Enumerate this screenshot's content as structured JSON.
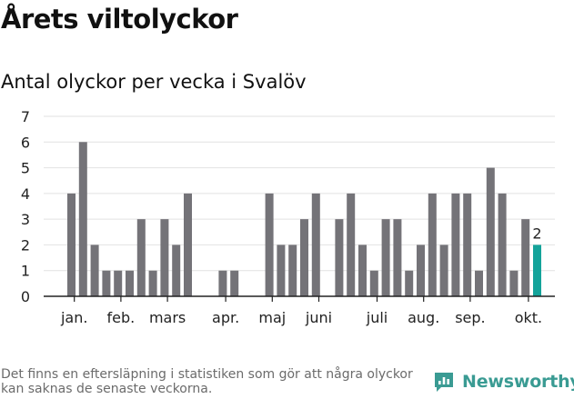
{
  "header": {
    "title": "Årets viltolyckor",
    "subtitle": "Antal olyckor per vecka i Svalöv"
  },
  "footer": {
    "note": "Det finns en eftersläpning i statistiken som gör att några olyckor kan saknas de senaste veckorna.",
    "brand": "Newsworthy"
  },
  "colors": {
    "bar": "#747378",
    "highlight": "#14a39a",
    "brand": "#3a9b93",
    "grid": "#e2e2e2",
    "axis": "#222222"
  },
  "chart_data": {
    "type": "bar",
    "xlabel": "",
    "ylabel": "",
    "ylim": [
      0,
      7
    ],
    "yticks": [
      0,
      1,
      2,
      3,
      4,
      5,
      6,
      7
    ],
    "grid": true,
    "x": [
      1,
      2,
      3,
      4,
      5,
      6,
      7,
      8,
      9,
      10,
      11,
      12,
      13,
      14,
      15,
      16,
      17,
      18,
      19,
      20,
      21,
      22,
      23,
      24,
      25,
      26,
      27,
      28,
      29,
      30,
      31,
      32,
      33,
      34,
      35,
      36,
      37,
      38,
      39,
      40
    ],
    "values": [
      4,
      6,
      2,
      1,
      1,
      1,
      3,
      1,
      3,
      2,
      4,
      0,
      0,
      1,
      1,
      0,
      0,
      4,
      2,
      2,
      3,
      4,
      0,
      3,
      4,
      2,
      1,
      3,
      3,
      1,
      2,
      4,
      2,
      4,
      4,
      1,
      5,
      4,
      1,
      3
    ],
    "highlight": {
      "x": 41,
      "value": 2,
      "label": "2"
    },
    "month_labels": [
      {
        "label": "jan.",
        "x": 1.25
      },
      {
        "label": "feb.",
        "x": 5.25
      },
      {
        "label": "mars",
        "x": 9.25
      },
      {
        "label": "apr.",
        "x": 14.25
      },
      {
        "label": "maj",
        "x": 18.25
      },
      {
        "label": "juni",
        "x": 22.25
      },
      {
        "label": "juli",
        "x": 27.25
      },
      {
        "label": "aug.",
        "x": 31.25
      },
      {
        "label": "sep.",
        "x": 35.25
      },
      {
        "label": "okt.",
        "x": 40.25
      }
    ]
  }
}
